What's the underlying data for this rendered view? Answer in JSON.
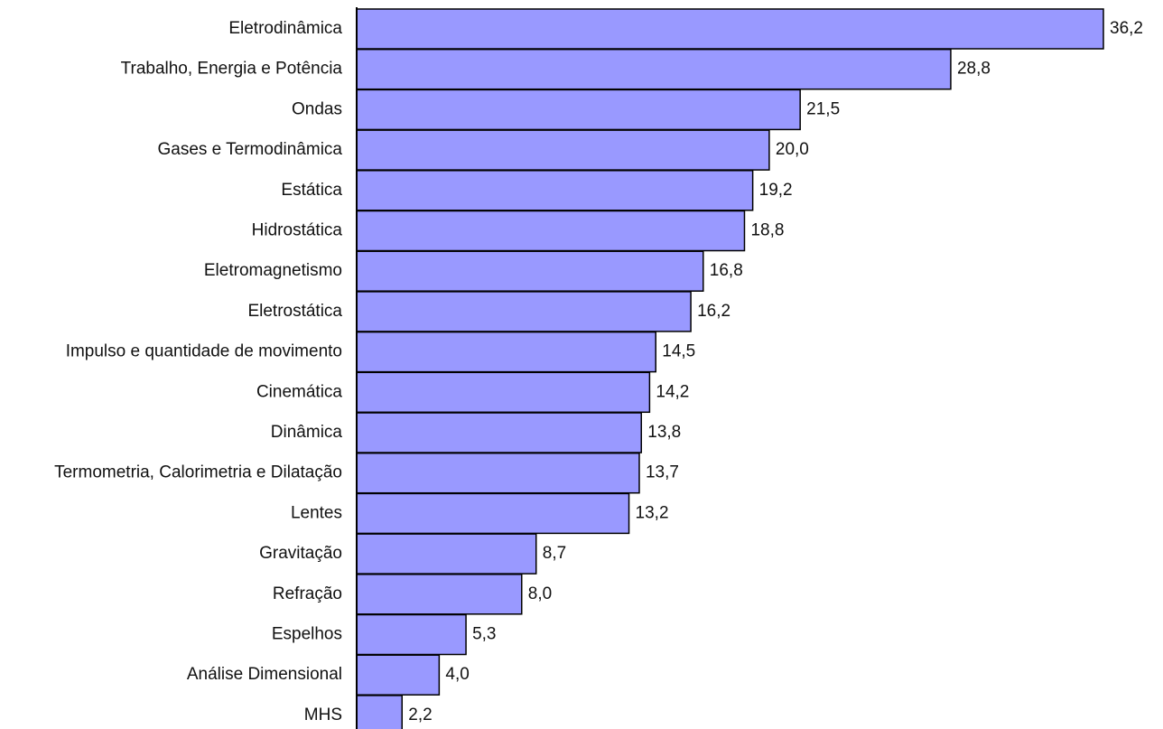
{
  "chart_data": {
    "type": "bar",
    "orientation": "horizontal",
    "categories": [
      "Eletrodinâmica",
      "Trabalho, Energia e Potência",
      "Ondas",
      "Gases e Termodinâmica",
      "Estática",
      "Hidrostática",
      "Eletromagnetismo",
      "Eletrostática",
      "Impulso e quantidade de movimento",
      "Cinemática",
      "Dinâmica",
      "Termometria, Calorimetria e Dilatação",
      "Lentes",
      "Gravitação",
      "Refração",
      "Espelhos",
      "Análise Dimensional",
      "MHS"
    ],
    "values": [
      36.2,
      28.8,
      21.5,
      20.0,
      19.2,
      18.8,
      16.8,
      16.2,
      14.5,
      14.2,
      13.8,
      13.7,
      13.2,
      8.7,
      8.0,
      5.3,
      4.0,
      2.2
    ],
    "value_labels": [
      "36,2",
      "28,8",
      "21,5",
      "20,0",
      "19,2",
      "18,8",
      "16,8",
      "16,2",
      "14,5",
      "14,2",
      "13,8",
      "13,7",
      "13,2",
      "8,7",
      "8,0",
      "5,3",
      "4,0",
      "2,2"
    ],
    "bar_color": "#9999ff",
    "bar_edge_color": "#000000",
    "axis_color": "#000000",
    "title": "",
    "xlabel": "",
    "ylabel": "",
    "xlim": [
      0,
      36.2
    ],
    "grid": false,
    "legend": "none"
  }
}
